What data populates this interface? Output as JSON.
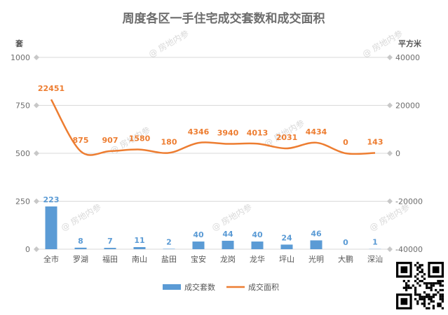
{
  "chart_data": {
    "type": "bar+line",
    "title": "周度各区一手住宅成交套数和成交面积",
    "y_left_unit": "套",
    "y_right_unit": "平方米",
    "y_left_ticks": [
      "1000",
      "750",
      "500",
      "250",
      "0"
    ],
    "y_right_ticks": [
      "40000",
      "20000",
      "0",
      "-20000",
      "-40000"
    ],
    "y_left_range": [
      0,
      1000
    ],
    "y_right_range": [
      -40000,
      40000
    ],
    "categories": [
      "全市",
      "罗湖",
      "福田",
      "南山",
      "盐田",
      "宝安",
      "龙岗",
      "龙华",
      "坪山",
      "光明",
      "大鹏",
      "深汕"
    ],
    "series": [
      {
        "name": "成交套数",
        "type": "bar",
        "axis": "left",
        "color": "#5b9bd5",
        "values": [
          223,
          8,
          7,
          11,
          2,
          40,
          44,
          40,
          24,
          46,
          0,
          1
        ],
        "labels": [
          "223",
          "8",
          "7",
          "11",
          "2",
          "40",
          "44",
          "40",
          "24",
          "46",
          "0",
          "1"
        ]
      },
      {
        "name": "成交面积",
        "type": "line",
        "axis": "right",
        "color": "#ed7d31",
        "values": [
          22451,
          875,
          907,
          1580,
          180,
          4346,
          3940,
          4013,
          2031,
          4434,
          0,
          143
        ],
        "labels": [
          "22451",
          "875",
          "907",
          "1580",
          "180",
          "4346",
          "3940",
          "4013",
          "2031",
          "4434",
          "0",
          "143"
        ]
      }
    ],
    "legend": "bottom",
    "grid": true
  },
  "watermark": "@ 房地内参"
}
